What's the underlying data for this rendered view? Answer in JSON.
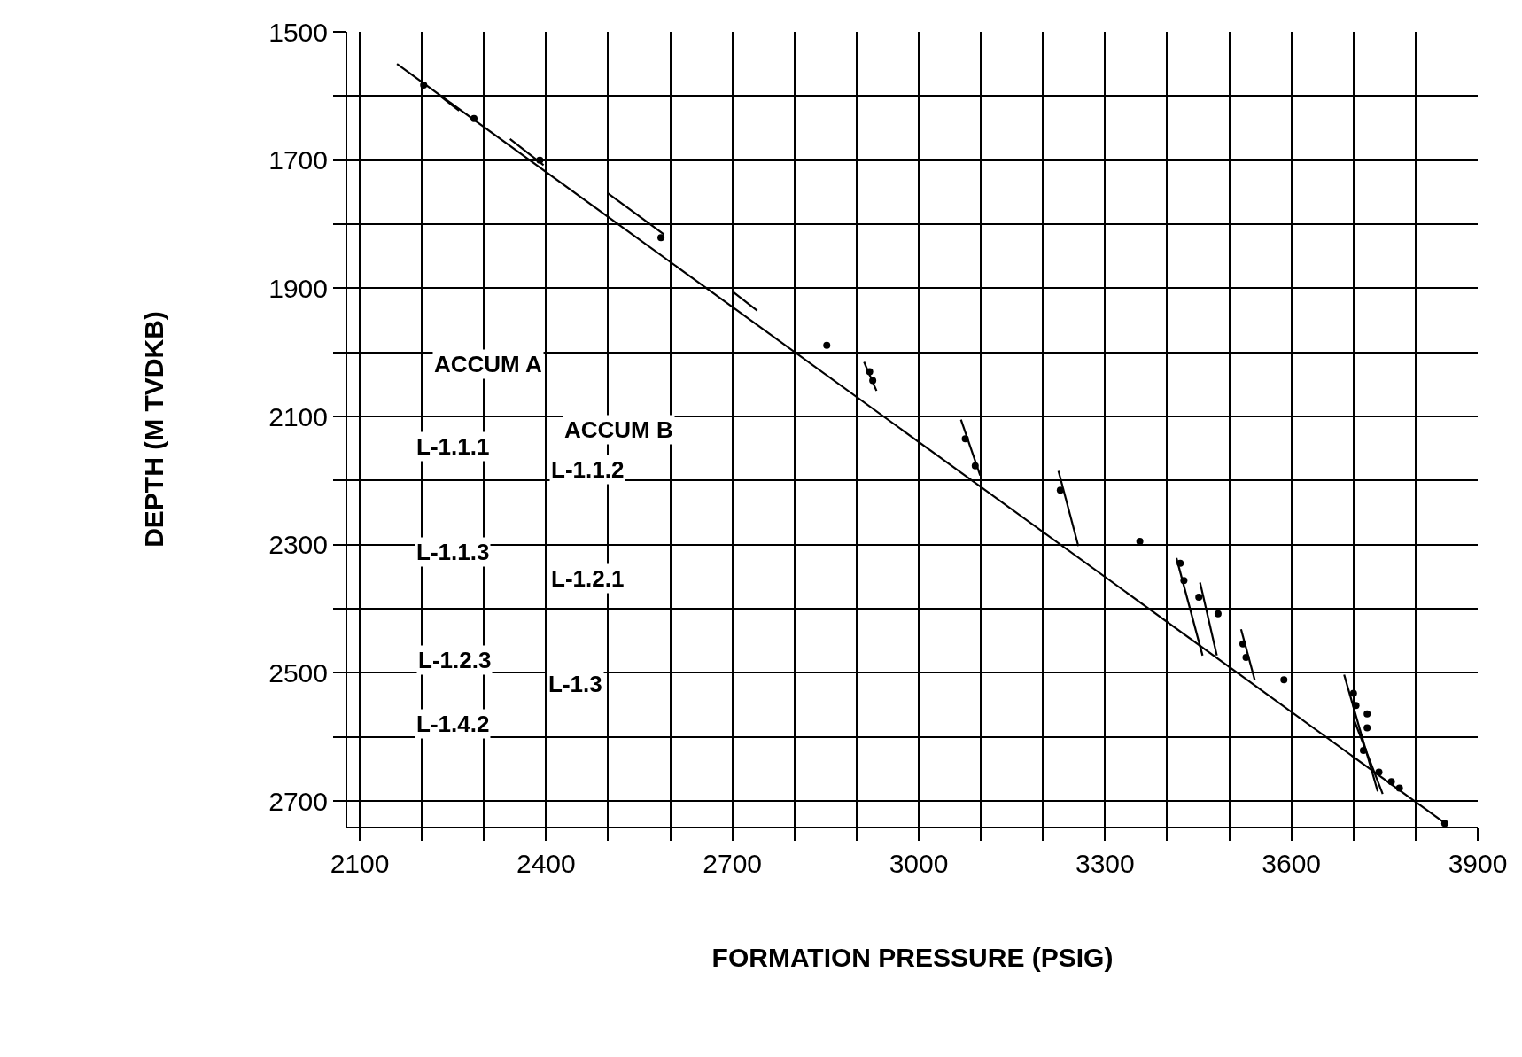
{
  "chart_data": {
    "type": "scatter",
    "xlabel": "FORMATION PRESSURE (PSIG)",
    "ylabel": "DEPTH (M TVDKB)",
    "xlim": [
      2080,
      3900
    ],
    "ylim": [
      2740,
      1500
    ],
    "xticks": [
      2100,
      {
        "value": 2200,
        "label": null
      },
      {
        "value": 2300,
        "label": null
      },
      2400,
      {
        "value": 2500,
        "label": null
      },
      {
        "value": 2600,
        "label": null
      },
      2700,
      {
        "value": 2800,
        "label": null
      },
      {
        "value": 2900,
        "label": null
      },
      3000,
      {
        "value": 3100,
        "label": null
      },
      {
        "value": 3200,
        "label": null
      },
      3300,
      {
        "value": 3400,
        "label": null
      },
      {
        "value": 3500,
        "label": null
      },
      3600,
      {
        "value": 3700,
        "label": null
      },
      {
        "value": 3800,
        "label": null
      },
      3900
    ],
    "yticks": [
      1500,
      {
        "value": 1600,
        "label": null
      },
      1700,
      {
        "value": 1800,
        "label": null
      },
      1900,
      {
        "value": 2000,
        "label": null
      },
      2100,
      {
        "value": 2200,
        "label": null
      },
      2300,
      {
        "value": 2400,
        "label": null
      },
      2500,
      {
        "value": 2600,
        "label": null
      },
      2700
    ],
    "grid": true,
    "marker": "circle",
    "line_style": "solid",
    "annotations": [
      "ACCUM A",
      "ACCUM B",
      "L-1.1.1",
      "L-1.1.2",
      "L-1.1.3",
      "L-1.2.1",
      "L-1.2.3",
      "L-1.3",
      "L-1.4.2"
    ],
    "series": [
      {
        "color": "#000000",
        "x": [
          2203,
          2284,
          2390,
          2585,
          2852,
          2921,
          2926,
          3075,
          3091,
          3228,
          3356,
          3421,
          3427,
          3451,
          3482,
          3522,
          3527,
          3588,
          3700,
          3704,
          3722,
          3722,
          3716,
          3741,
          3761,
          3774,
          3847
        ],
        "values": [
          1583,
          1635,
          1700,
          1821,
          1989,
          2030,
          2044,
          2135,
          2177,
          2215,
          2295,
          2329,
          2356,
          2382,
          2408,
          2455,
          2476,
          2511,
          2532,
          2551,
          2564,
          2586,
          2621,
          2655,
          2670,
          2680,
          2735
        ]
      },
      {
        "type": "line",
        "marker": "none",
        "color": "#000000",
        "x": [
          2160,
          3845
        ],
        "values": [
          1550,
          2733
        ]
      },
      {
        "type": "line",
        "marker": "none",
        "color": "#000000",
        "x": [
          2231,
          2260
        ],
        "values": [
          1601,
          1623
        ]
      },
      {
        "type": "line",
        "marker": "none",
        "color": "#000000",
        "x": [
          2342,
          2396
        ],
        "values": [
          1667,
          1708
        ]
      },
      {
        "type": "line",
        "marker": "none",
        "color": "#000000",
        "x": [
          2500,
          2590
        ],
        "values": [
          1752,
          1816
        ]
      },
      {
        "type": "line",
        "marker": "none",
        "color": "#000000",
        "x": [
          2700,
          2740
        ],
        "values": [
          1905,
          1935
        ]
      },
      {
        "type": "line",
        "marker": "none",
        "color": "#000000",
        "x": [
          2912,
          2932
        ],
        "values": [
          2015,
          2060
        ]
      },
      {
        "type": "line",
        "marker": "none",
        "color": "#000000",
        "x": [
          3068,
          3099
        ],
        "values": [
          2105,
          2192
        ]
      },
      {
        "type": "line",
        "marker": "none",
        "color": "#000000",
        "x": [
          3225,
          3257
        ],
        "values": [
          2185,
          2302
        ]
      },
      {
        "type": "line",
        "marker": "none",
        "color": "#000000",
        "x": [
          3415,
          3457
        ],
        "values": [
          2321,
          2473
        ]
      },
      {
        "type": "line",
        "marker": "none",
        "color": "#000000",
        "x": [
          3453,
          3480
        ],
        "values": [
          2359,
          2473
        ]
      },
      {
        "type": "line",
        "marker": "none",
        "color": "#000000",
        "x": [
          3519,
          3541
        ],
        "values": [
          2432,
          2511
        ]
      },
      {
        "type": "line",
        "marker": "none",
        "color": "#000000",
        "x": [
          3685,
          3739
        ],
        "values": [
          2503,
          2685
        ]
      },
      {
        "type": "line",
        "marker": "none",
        "color": "#000000",
        "x": [
          3700,
          3747
        ],
        "values": [
          2571,
          2689
        ]
      }
    ]
  }
}
